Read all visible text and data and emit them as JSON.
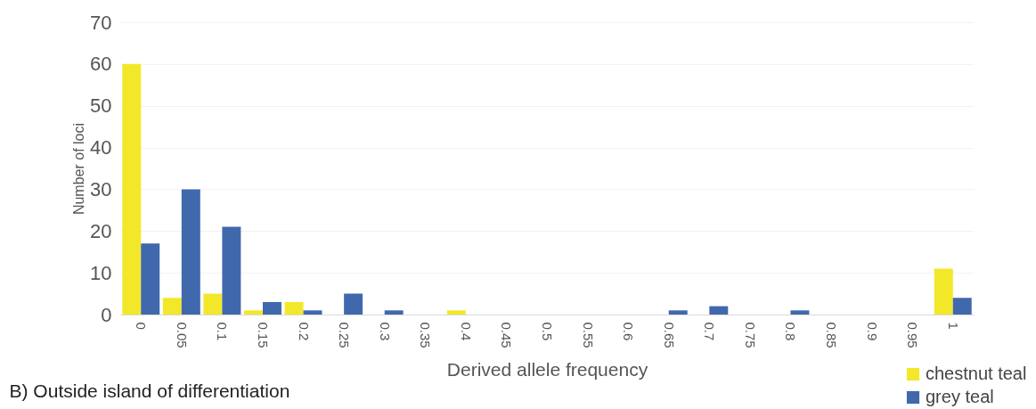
{
  "chart_data": {
    "type": "bar",
    "xlabel": "Derived allele frequency",
    "ylabel": "Number of loci",
    "categories": [
      "0",
      "0.05",
      "0.1",
      "0.15",
      "0.2",
      "0.25",
      "0.3",
      "0.35",
      "0.4",
      "0.45",
      "0.5",
      "0.55",
      "0.6",
      "0.65",
      "0.7",
      "0.75",
      "0.8",
      "0.85",
      "0.9",
      "0.95",
      "1"
    ],
    "series": [
      {
        "name": "chestnut teal",
        "color": "#f2e829",
        "values": [
          60,
          4,
          5,
          1,
          3,
          0,
          0,
          0,
          1,
          0,
          0,
          0,
          0,
          0,
          0,
          0,
          0,
          0,
          0,
          0,
          11
        ]
      },
      {
        "name": "grey teal",
        "color": "#4068ad",
        "values": [
          17,
          30,
          21,
          3,
          1,
          5,
          1,
          0,
          0,
          0,
          0,
          0,
          0,
          1,
          2,
          0,
          1,
          0,
          0,
          0,
          4
        ]
      }
    ],
    "ylim": [
      0,
      70
    ],
    "yticks": [
      0,
      10,
      20,
      30,
      40,
      50,
      60,
      70
    ],
    "grid": "y",
    "legend": "bottom right",
    "annotations": [
      "B) Outside island of differentiation"
    ]
  }
}
